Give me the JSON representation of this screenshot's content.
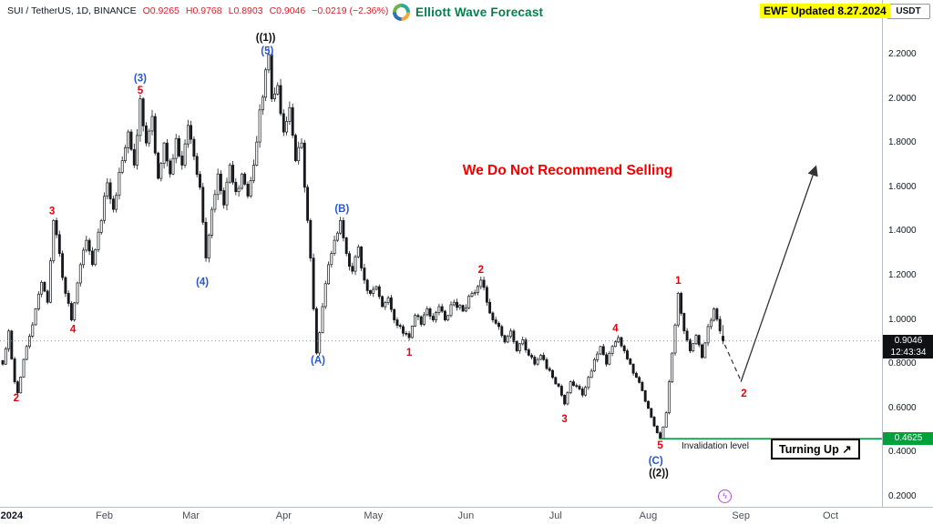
{
  "header": {
    "symbol": "SUI / TetherUS, 1D, BINANCE",
    "ohlc": {
      "o": "O0.9265",
      "h": "H0.9768",
      "l": "L0.8903",
      "c": "C0.9046",
      "change": "−0.0219 (−2.36%)"
    },
    "logo_text": "Elliott Wave Forecast",
    "updated": "EWF Updated 8.27.2024",
    "currency_label": "USDT"
  },
  "annotations": {
    "no_sell": "We Do Not Recommend Selling",
    "invalidation": "Invalidation level",
    "turning_up": "Turning Up ↗",
    "event_icon": "ϟ"
  },
  "price_axis": {
    "ticks": [
      "2.2000",
      "2.0000",
      "1.8000",
      "1.6000",
      "1.4000",
      "1.2000",
      "1.0000",
      "0.8000",
      "0.6000",
      "0.4000",
      "0.2000"
    ],
    "current_price": "0.9046",
    "countdown": "12:43:34",
    "invalidation_price": "0.4625"
  },
  "time_axis": {
    "labels": [
      {
        "text": "2024",
        "d": 3,
        "bold": true
      },
      {
        "text": "Feb",
        "d": 34
      },
      {
        "text": "Mar",
        "d": 63
      },
      {
        "text": "Apr",
        "d": 94
      },
      {
        "text": "May",
        "d": 124
      },
      {
        "text": "Jun",
        "d": 155
      },
      {
        "text": "Jul",
        "d": 185
      },
      {
        "text": "Aug",
        "d": 216
      },
      {
        "text": "Sep",
        "d": 247
      },
      {
        "text": "Oct",
        "d": 277
      }
    ]
  },
  "chart_data": {
    "type": "candlestick",
    "symbol": "SUI/USDT",
    "timeframe": "1D",
    "exchange": "BINANCE",
    "y_range": [
      0.2,
      2.2
    ],
    "x_map": {
      "x0": 3,
      "step": 3.28
    },
    "y_map": {
      "p0": 0.2,
      "y0": 546,
      "scale": 243
    },
    "current_price": 0.9046,
    "invalidation_level": 0.4625,
    "green_line_start_d": 219.8,
    "last_bar": {
      "o": 0.9265,
      "h": 0.9768,
      "l": 0.8903,
      "c": 0.9046
    },
    "waypoints": [
      [
        0,
        0.8
      ],
      [
        2,
        0.95
      ],
      [
        4,
        0.72
      ],
      [
        5,
        0.67
      ],
      [
        8,
        0.88
      ],
      [
        11,
        1.05
      ],
      [
        13,
        1.17
      ],
      [
        15,
        1.08
      ],
      [
        17,
        1.45
      ],
      [
        19,
        1.3
      ],
      [
        21,
        1.12
      ],
      [
        23,
        1.0
      ],
      [
        26,
        1.25
      ],
      [
        28,
        1.36
      ],
      [
        30,
        1.25
      ],
      [
        33,
        1.45
      ],
      [
        35,
        1.62
      ],
      [
        37,
        1.5
      ],
      [
        40,
        1.72
      ],
      [
        42,
        1.85
      ],
      [
        44,
        1.7
      ],
      [
        46,
        2.0
      ],
      [
        48,
        1.8
      ],
      [
        50,
        1.92
      ],
      [
        52,
        1.64
      ],
      [
        54,
        1.8
      ],
      [
        56,
        1.66
      ],
      [
        58,
        1.82
      ],
      [
        60,
        1.7
      ],
      [
        62,
        1.88
      ],
      [
        64,
        1.74
      ],
      [
        66,
        1.6
      ],
      [
        68,
        1.28
      ],
      [
        70,
        1.5
      ],
      [
        72,
        1.66
      ],
      [
        74,
        1.52
      ],
      [
        76,
        1.7
      ],
      [
        78,
        1.58
      ],
      [
        80,
        1.66
      ],
      [
        82,
        1.56
      ],
      [
        84,
        1.7
      ],
      [
        86,
        1.95
      ],
      [
        89,
        2.2
      ],
      [
        90,
        2.0
      ],
      [
        92,
        2.06
      ],
      [
        94,
        1.85
      ],
      [
        96,
        1.96
      ],
      [
        98,
        1.72
      ],
      [
        100,
        1.8
      ],
      [
        101,
        1.6
      ],
      [
        102,
        1.45
      ],
      [
        103,
        1.28
      ],
      [
        104,
        1.05
      ],
      [
        105,
        0.85
      ],
      [
        107,
        1.06
      ],
      [
        109,
        1.25
      ],
      [
        111,
        1.36
      ],
      [
        113,
        1.45
      ],
      [
        115,
        1.3
      ],
      [
        117,
        1.22
      ],
      [
        119,
        1.33
      ],
      [
        121,
        1.18
      ],
      [
        123,
        1.12
      ],
      [
        125,
        1.15
      ],
      [
        127,
        1.06
      ],
      [
        129,
        1.1
      ],
      [
        131,
        1.0
      ],
      [
        133,
        0.97
      ],
      [
        136,
        0.92
      ],
      [
        138,
        1.02
      ],
      [
        140,
        0.98
      ],
      [
        142,
        1.05
      ],
      [
        144,
        1.0
      ],
      [
        146,
        1.06
      ],
      [
        148,
        1.0
      ],
      [
        151,
        1.08
      ],
      [
        154,
        1.04
      ],
      [
        157,
        1.12
      ],
      [
        160,
        1.18
      ],
      [
        162,
        1.08
      ],
      [
        164,
        1.0
      ],
      [
        166,
        0.97
      ],
      [
        168,
        0.9
      ],
      [
        170,
        0.95
      ],
      [
        172,
        0.86
      ],
      [
        174,
        0.91
      ],
      [
        176,
        0.84
      ],
      [
        178,
        0.8
      ],
      [
        180,
        0.84
      ],
      [
        182,
        0.78
      ],
      [
        184,
        0.74
      ],
      [
        186,
        0.7
      ],
      [
        188,
        0.62
      ],
      [
        190,
        0.72
      ],
      [
        192,
        0.7
      ],
      [
        194,
        0.66
      ],
      [
        196,
        0.74
      ],
      [
        198,
        0.82
      ],
      [
        200,
        0.88
      ],
      [
        202,
        0.8
      ],
      [
        204,
        0.88
      ],
      [
        206,
        0.92
      ],
      [
        208,
        0.86
      ],
      [
        210,
        0.8
      ],
      [
        212,
        0.74
      ],
      [
        214,
        0.68
      ],
      [
        216,
        0.6
      ],
      [
        218,
        0.52
      ],
      [
        220,
        0.4625
      ],
      [
        222,
        0.58
      ],
      [
        224,
        0.85
      ],
      [
        226,
        1.12
      ],
      [
        228,
        0.95
      ],
      [
        230,
        0.86
      ],
      [
        232,
        0.93
      ],
      [
        234,
        0.83
      ],
      [
        236,
        0.97
      ],
      [
        238,
        1.05
      ],
      [
        240,
        0.95
      ],
      [
        241,
        0.9046
      ]
    ],
    "wave_labels": [
      {
        "t": "2",
        "d": 4.5,
        "p": 0.645,
        "c": "red"
      },
      {
        "t": "3",
        "d": 16.5,
        "p": 1.49,
        "c": "red"
      },
      {
        "t": "4",
        "d": 23.5,
        "p": 0.955,
        "c": "red"
      },
      {
        "t": "5",
        "d": 46,
        "p": 2.035,
        "c": "red"
      },
      {
        "t": "(3)",
        "d": 46,
        "p": 2.09,
        "c": "blue"
      },
      {
        "t": "(4)",
        "d": 66.8,
        "p": 1.17,
        "c": "blue"
      },
      {
        "t": "(5)",
        "d": 88.5,
        "p": 2.215,
        "c": "blue"
      },
      {
        "t": "((1))",
        "d": 88,
        "p": 2.275,
        "c": "black"
      },
      {
        "t": "(A)",
        "d": 105.5,
        "p": 0.815,
        "c": "blue"
      },
      {
        "t": "(B)",
        "d": 113.5,
        "p": 1.5,
        "c": "blue"
      },
      {
        "t": "1",
        "d": 136,
        "p": 0.85,
        "c": "red"
      },
      {
        "t": "2",
        "d": 160,
        "p": 1.225,
        "c": "red"
      },
      {
        "t": "3",
        "d": 188,
        "p": 0.55,
        "c": "red"
      },
      {
        "t": "4",
        "d": 205,
        "p": 0.96,
        "c": "red"
      },
      {
        "t": "5",
        "d": 220,
        "p": 0.43,
        "c": "red"
      },
      {
        "t": "(C)",
        "d": 218.5,
        "p": 0.36,
        "c": "blue"
      },
      {
        "t": "((2))",
        "d": 219.5,
        "p": 0.305,
        "c": "black"
      },
      {
        "t": "1",
        "d": 226,
        "p": 1.175,
        "c": "red"
      },
      {
        "t": "2",
        "d": 248,
        "p": 0.665,
        "c": "red"
      }
    ],
    "projection": {
      "dashed": [
        [
          241.6,
          0.888
        ],
        [
          247,
          0.725
        ]
      ],
      "arrow": [
        [
          247,
          0.72
        ],
        [
          272,
          1.69
        ]
      ]
    },
    "colors": {
      "candle": "#16181d",
      "red_label": "#e8000d",
      "blue_label": "#2757d3",
      "black_label": "#111111",
      "green": "#00a13a",
      "projection": "#333333",
      "dotted": "#8a8e98"
    }
  }
}
